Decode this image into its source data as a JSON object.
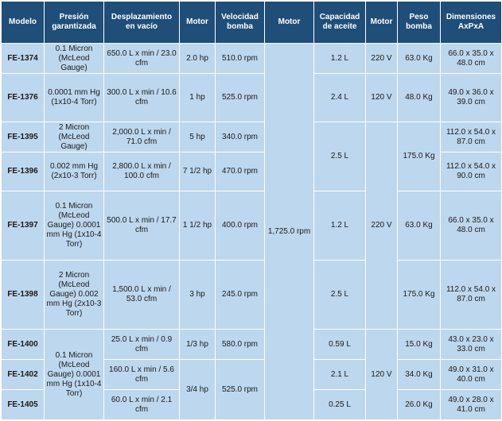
{
  "headers": [
    "Modelo",
    "Presión garantizada",
    "Desplazamiento en vacío",
    "Motor",
    "Velocidad bomba",
    "Motor",
    "Capacidad de aceite",
    "Motor",
    "Peso bomba",
    "Dimensiones AxPxA"
  ],
  "models": [
    "FE-1374",
    "FE-1376",
    "FE-1395",
    "FE-1396",
    "FE-1397",
    "FE-1398",
    "FE-1400",
    "FE-1402",
    "FE-1405"
  ],
  "presion": {
    "fe1374": "0.1 Micron (McLeod Gauge)",
    "fe1376": "0.0001 mm Hg (1x10-4 Torr)",
    "fe1395": "2 Micron (McLeod Gauge)",
    "fe1396": "0.002 mm Hg (2x10-3 Torr)",
    "fe1397": "0.1 Micron (McLeod Gauge) 0.0001 mm Hg (1x10-4 Torr)",
    "fe1398": "2 Micron (McLeod Gauge) 0.002 mm Hg (2x10-3 Torr)",
    "fe1400_1405": "0.1 Micron (McLeod Gauge) 0.0001 mm Hg (1x10-4 Torr)"
  },
  "desplazamiento": [
    "650.0 L x min / 23.0 cfm",
    "300.0 L x min / 10.6 cfm",
    "2,000.0 L x min / 71.0 cfm",
    "2,800.0 L x min / 100.0 cfm",
    "500.0 L x min / 17.7 cfm",
    "1,500.0 L x min / 53.0 cfm",
    "25.0 L x min / 0.9 cfm",
    "160.0 L x min / 5.6 cfm",
    "60.0 L x min / 2.1 cfm"
  ],
  "motor_hp": {
    "fe1374": "2.0 hp",
    "fe1376": "1 hp",
    "fe1395": "5 hp",
    "fe1396": "7 1/2 hp",
    "fe1397": "1 1/2 hp",
    "fe1398": "3 hp",
    "fe1400": "1/3 hp",
    "fe1402_1405": "3/4 hp"
  },
  "velocidad": {
    "fe1374": "510.0 rpm",
    "fe1376": "525.0 rpm",
    "fe1395": "340.0 rpm",
    "fe1396": "470.0 rpm",
    "fe1397": "400.0 rpm",
    "fe1398": "245.0 rpm",
    "fe1400": "580.0 rpm",
    "fe1402_1405": "525.0 rpm"
  },
  "motor_rpm": "1,725.0 rpm",
  "aceite": {
    "fe1374": "1.2 L",
    "fe1376": "2.4 L",
    "fe1395_1396": "2.5 L",
    "fe1397": "1.2 L",
    "fe1398": "2.5 L",
    "fe1400": "0.59 L",
    "fe1402": "2.1 L",
    "fe1405": "0.25 L"
  },
  "voltaje": {
    "fe1374": "220 V",
    "fe1376": "120 V",
    "fe1395_1398": "220 V",
    "fe1400_1405": "120 V"
  },
  "peso": {
    "fe1374": "63.0 Kg",
    "fe1376": "48.0 Kg",
    "fe1395_1396": "175.0 Kg",
    "fe1397": "63.0 Kg",
    "fe1398": "175.0 Kg",
    "fe1400": "15.0 Kg",
    "fe1402": "34.0 Kg",
    "fe1405": "26.0 Kg"
  },
  "dimensiones": [
    "66.0 x 35.0 x 48.0 cm",
    "49.0 x 36.0 x 39.0 cm",
    "112.0 x 54.0 x 87.0 cm",
    "112.0 x 54.0 x 90.0 cm",
    "66.0 x 35.0 x 48.0 cm",
    "112.0 x 54.0 x 87.0 cm",
    "43.0 x 23.0 x 33.0 cm",
    "49.0 x 31.0 x 40.0 cm",
    "49.0 x 28.0 x 41.0 cm"
  ]
}
